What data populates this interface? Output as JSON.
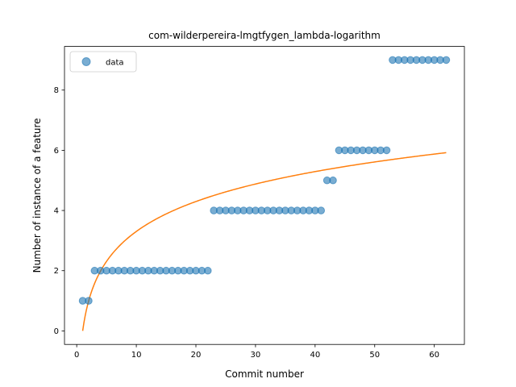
{
  "chart_data": {
    "type": "scatter",
    "title": "com-wilderpereira-lmgtfygen_lambda-logarithm",
    "xlabel": "Commit number",
    "ylabel": "Number of instance of a feature",
    "xlim": [
      -2.05,
      65.05
    ],
    "ylim": [
      -0.45,
      9.45
    ],
    "xticks": [
      0,
      10,
      20,
      30,
      40,
      50,
      60
    ],
    "yticks": [
      0,
      2,
      4,
      6,
      8
    ],
    "grid": false,
    "legend": {
      "position": "top-left",
      "entries": [
        "data"
      ]
    },
    "series": [
      {
        "name": "data",
        "kind": "scatter",
        "color": "#1f77b4",
        "x": [
          1,
          2,
          3,
          4,
          5,
          6,
          7,
          8,
          9,
          10,
          11,
          12,
          13,
          14,
          15,
          16,
          17,
          18,
          19,
          20,
          21,
          22,
          23,
          24,
          25,
          26,
          27,
          28,
          29,
          30,
          31,
          32,
          33,
          34,
          35,
          36,
          37,
          38,
          39,
          40,
          41,
          42,
          43,
          44,
          45,
          46,
          47,
          48,
          49,
          50,
          51,
          52,
          53,
          54,
          55,
          56,
          57,
          58,
          59,
          60,
          61,
          62
        ],
        "y": [
          1,
          1,
          2,
          2,
          2,
          2,
          2,
          2,
          2,
          2,
          2,
          2,
          2,
          2,
          2,
          2,
          2,
          2,
          2,
          2,
          2,
          2,
          4,
          4,
          4,
          4,
          4,
          4,
          4,
          4,
          4,
          4,
          4,
          4,
          4,
          4,
          4,
          4,
          4,
          4,
          4,
          5,
          5,
          6,
          6,
          6,
          6,
          6,
          6,
          6,
          6,
          6,
          9,
          9,
          9,
          9,
          9,
          9,
          9,
          9,
          9,
          9
        ]
      },
      {
        "kind": "line",
        "color": "#ff7f0e",
        "fit": "logarithm",
        "x_range": [
          1,
          62
        ],
        "a": 1.4346,
        "b": 0.0
      }
    ]
  }
}
